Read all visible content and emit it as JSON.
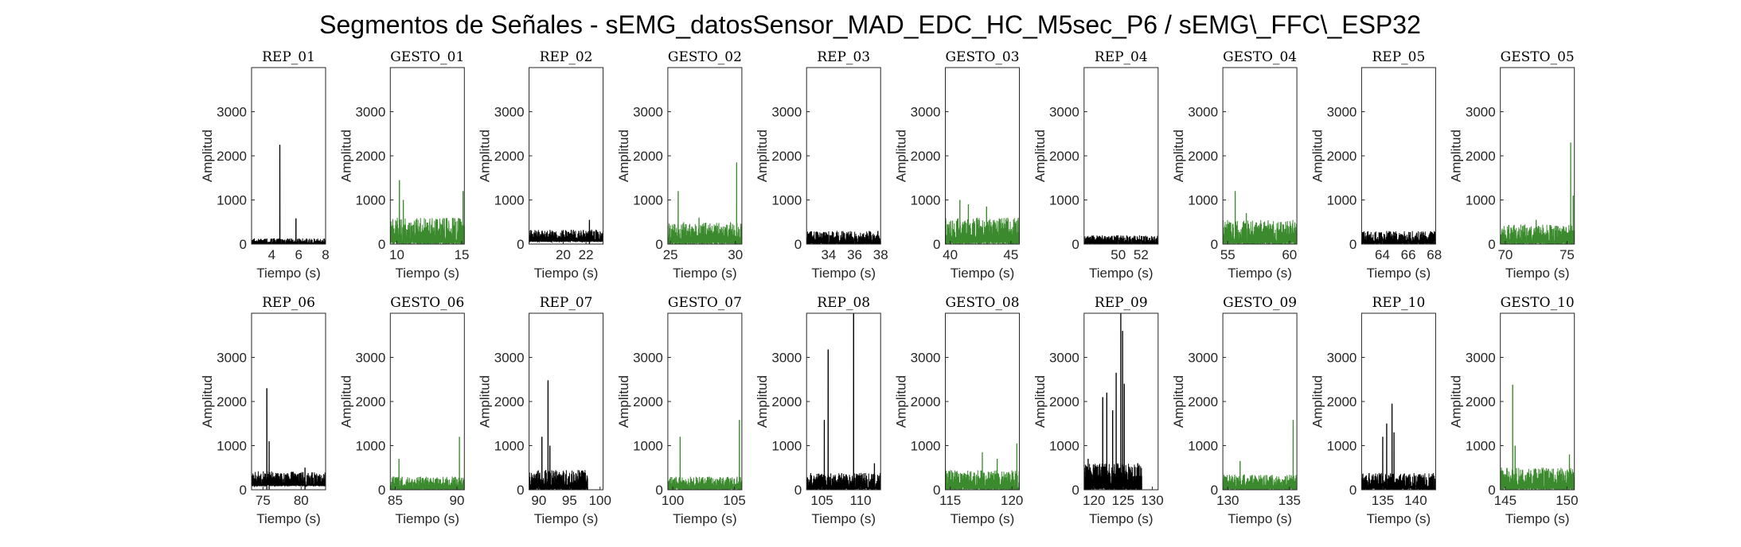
{
  "figure": {
    "title": "Segmentos de Señales - sEMG_datosSensor_MAD_EDC_HC_M5sec_P6 / sEMG\\_FFC\\_ESP32",
    "colors": {
      "rep": "#000000",
      "gesto": "#3b8a2e"
    }
  },
  "chart_data": [
    {
      "type": "line",
      "title": "REP_01",
      "kind": "rep",
      "xlabel": "Tiempo (s)",
      "ylabel": "Amplitud",
      "xlim": [
        2.5,
        8
      ],
      "xticks": [
        4,
        6,
        8
      ],
      "ylim": [
        0,
        4000
      ],
      "yticks": [
        0,
        1000,
        2000,
        3000
      ],
      "baseline": [
        0,
        130
      ],
      "peaks": [
        [
          4.6,
          2250
        ],
        [
          5.8,
          580
        ]
      ]
    },
    {
      "type": "line",
      "title": "GESTO_01",
      "kind": "gesto",
      "xlabel": "Tiempo (s)",
      "ylabel": "Amplitud",
      "xlim": [
        9.5,
        15.2
      ],
      "xticks": [
        10,
        15
      ],
      "ylim": [
        0,
        4000
      ],
      "yticks": [
        0,
        1000,
        2000,
        3000
      ],
      "baseline": [
        0,
        600
      ],
      "peaks": [
        [
          10.2,
          1450
        ],
        [
          10.5,
          1000
        ],
        [
          15.1,
          1200
        ]
      ]
    },
    {
      "type": "line",
      "title": "REP_02",
      "kind": "rep",
      "xlabel": "Tiempo (s)",
      "ylabel": "Amplitud",
      "xlim": [
        17,
        23.5
      ],
      "xticks": [
        20,
        22
      ],
      "ylim": [
        0,
        4000
      ],
      "yticks": [
        0,
        1000,
        2000,
        3000
      ],
      "baseline": [
        50,
        330
      ],
      "peaks": [
        [
          22.3,
          550
        ]
      ]
    },
    {
      "type": "line",
      "title": "GESTO_02",
      "kind": "gesto",
      "xlabel": "Tiempo (s)",
      "ylabel": "Amplitud",
      "xlim": [
        24.8,
        30.5
      ],
      "xticks": [
        25,
        30
      ],
      "ylim": [
        0,
        4000
      ],
      "yticks": [
        0,
        1000,
        2000,
        3000
      ],
      "baseline": [
        0,
        500
      ],
      "peaks": [
        [
          25.6,
          1200
        ],
        [
          27.2,
          600
        ],
        [
          30.1,
          1850
        ]
      ]
    },
    {
      "type": "line",
      "title": "REP_03",
      "kind": "rep",
      "xlabel": "Tiempo (s)",
      "ylabel": "Amplitud",
      "xlim": [
        32.3,
        38
      ],
      "xticks": [
        34,
        36,
        38
      ],
      "ylim": [
        0,
        4000
      ],
      "yticks": [
        0,
        1000,
        2000,
        3000
      ],
      "baseline": [
        0,
        300
      ],
      "peaks": []
    },
    {
      "type": "line",
      "title": "GESTO_03",
      "kind": "gesto",
      "xlabel": "Tiempo (s)",
      "ylabel": "Amplitud",
      "xlim": [
        39.6,
        45.7
      ],
      "xticks": [
        40,
        45
      ],
      "ylim": [
        0,
        4000
      ],
      "yticks": [
        0,
        1000,
        2000,
        3000
      ],
      "baseline": [
        0,
        600
      ],
      "peaks": [
        [
          40.8,
          1000
        ],
        [
          41.5,
          900
        ],
        [
          43.0,
          850
        ]
      ]
    },
    {
      "type": "line",
      "title": "REP_04",
      "kind": "rep",
      "xlabel": "Tiempo (s)",
      "ylabel": "Amplitud",
      "xlim": [
        47,
        53.5
      ],
      "xticks": [
        50,
        52
      ],
      "ylim": [
        0,
        4000
      ],
      "yticks": [
        0,
        1000,
        2000,
        3000
      ],
      "baseline": [
        0,
        200
      ],
      "peaks": []
    },
    {
      "type": "line",
      "title": "GESTO_04",
      "kind": "gesto",
      "xlabel": "Tiempo (s)",
      "ylabel": "Amplitud",
      "xlim": [
        54.6,
        60.6
      ],
      "xticks": [
        55,
        60
      ],
      "ylim": [
        0,
        4000
      ],
      "yticks": [
        0,
        1000,
        2000,
        3000
      ],
      "baseline": [
        0,
        550
      ],
      "peaks": [
        [
          55.6,
          1200
        ],
        [
          56.5,
          700
        ]
      ]
    },
    {
      "type": "line",
      "title": "REP_05",
      "kind": "rep",
      "xlabel": "Tiempo (s)",
      "ylabel": "Amplitud",
      "xlim": [
        62.4,
        68.1
      ],
      "xticks": [
        64,
        66,
        68
      ],
      "ylim": [
        0,
        4000
      ],
      "yticks": [
        0,
        1000,
        2000,
        3000
      ],
      "baseline": [
        0,
        300
      ],
      "peaks": []
    },
    {
      "type": "line",
      "title": "GESTO_05",
      "kind": "gesto",
      "xlabel": "Tiempo (s)",
      "ylabel": "Amplitud",
      "xlim": [
        69.6,
        75.6
      ],
      "xticks": [
        70,
        75
      ],
      "ylim": [
        0,
        4000
      ],
      "yticks": [
        0,
        1000,
        2000,
        3000
      ],
      "baseline": [
        0,
        450
      ],
      "peaks": [
        [
          72.5,
          550
        ],
        [
          75.3,
          2300
        ],
        [
          75.5,
          1100
        ]
      ]
    },
    {
      "type": "line",
      "title": "REP_06",
      "kind": "rep",
      "xlabel": "Tiempo (s)",
      "ylabel": "Amplitud",
      "xlim": [
        73.5,
        83.2
      ],
      "xticks": [
        75,
        80
      ],
      "ylim": [
        0,
        4000
      ],
      "yticks": [
        0,
        1000,
        2000,
        3000
      ],
      "baseline": [
        80,
        420
      ],
      "peaks": [
        [
          75.5,
          2300
        ],
        [
          75.8,
          1100
        ],
        [
          80.5,
          500
        ]
      ]
    },
    {
      "type": "line",
      "title": "GESTO_06",
      "kind": "gesto",
      "xlabel": "Tiempo (s)",
      "ylabel": "Amplitud",
      "xlim": [
        84.6,
        90.6
      ],
      "xticks": [
        85,
        90
      ],
      "ylim": [
        0,
        4000
      ],
      "yticks": [
        0,
        1000,
        2000,
        3000
      ],
      "baseline": [
        0,
        300
      ],
      "peaks": [
        [
          85.3,
          700
        ],
        [
          90.2,
          1200
        ]
      ]
    },
    {
      "type": "line",
      "title": "REP_07",
      "kind": "rep",
      "xlabel": "Tiempo (s)",
      "ylabel": "Amplitud",
      "xlim": [
        88.4,
        100.5
      ],
      "xticks": [
        90,
        95,
        100
      ],
      "ylim": [
        0,
        4000
      ],
      "yticks": [
        0,
        1000,
        2000,
        3000
      ],
      "baseline": [
        0,
        450
      ],
      "peaks": [
        [
          90.5,
          1200
        ],
        [
          91.5,
          2480
        ],
        [
          91.8,
          1000
        ]
      ]
    },
    {
      "type": "line",
      "title": "GESTO_07",
      "kind": "gesto",
      "xlabel": "Tiempo (s)",
      "ylabel": "Amplitud",
      "xlim": [
        99.6,
        105.6
      ],
      "xticks": [
        100,
        105
      ],
      "ylim": [
        0,
        4000
      ],
      "yticks": [
        0,
        1000,
        2000,
        3000
      ],
      "baseline": [
        0,
        300
      ],
      "peaks": [
        [
          100.6,
          1200
        ],
        [
          105.4,
          1580
        ]
      ]
    },
    {
      "type": "line",
      "title": "REP_08",
      "kind": "rep",
      "xlabel": "Tiempo (s)",
      "ylabel": "Amplitud",
      "xlim": [
        103,
        112.6
      ],
      "xticks": [
        105,
        110
      ],
      "ylim": [
        0,
        4000
      ],
      "yticks": [
        0,
        1000,
        2000,
        3000
      ],
      "baseline": [
        0,
        380
      ],
      "peaks": [
        [
          105.3,
          1580
        ],
        [
          105.8,
          3180
        ],
        [
          109.1,
          4000
        ],
        [
          111.8,
          600
        ]
      ]
    },
    {
      "type": "line",
      "title": "GESTO_08",
      "kind": "gesto",
      "xlabel": "Tiempo (s)",
      "ylabel": "Amplitud",
      "xlim": [
        114.6,
        120.6
      ],
      "xticks": [
        115,
        120
      ],
      "ylim": [
        0,
        4000
      ],
      "yticks": [
        0,
        1000,
        2000,
        3000
      ],
      "baseline": [
        0,
        450
      ],
      "peaks": [
        [
          117.6,
          850
        ],
        [
          118.8,
          700
        ],
        [
          120.4,
          1050
        ]
      ]
    },
    {
      "type": "line",
      "title": "REP_09",
      "kind": "rep",
      "xlabel": "Tiempo (s)",
      "ylabel": "Amplitud",
      "xlim": [
        118.3,
        131
      ],
      "xticks": [
        120,
        125,
        130
      ],
      "ylim": [
        0,
        4000
      ],
      "yticks": [
        0,
        1000,
        2000,
        3000
      ],
      "baseline": [
        0,
        600
      ],
      "peaks": [
        [
          119,
          700
        ],
        [
          121.5,
          2100
        ],
        [
          122.2,
          2200
        ],
        [
          123.2,
          1800
        ],
        [
          123.8,
          2650
        ],
        [
          124.6,
          4000
        ],
        [
          124.9,
          3600
        ],
        [
          125.2,
          2400
        ],
        [
          127.5,
          600
        ]
      ]
    },
    {
      "type": "line",
      "title": "GESTO_09",
      "kind": "gesto",
      "xlabel": "Tiempo (s)",
      "ylabel": "Amplitud",
      "xlim": [
        129.6,
        135.6
      ],
      "xticks": [
        130,
        135
      ],
      "ylim": [
        0,
        4000
      ],
      "yticks": [
        0,
        1000,
        2000,
        3000
      ],
      "baseline": [
        0,
        350
      ],
      "peaks": [
        [
          131.0,
          650
        ],
        [
          135.3,
          1580
        ]
      ]
    },
    {
      "type": "line",
      "title": "REP_10",
      "kind": "rep",
      "xlabel": "Tiempo (s)",
      "ylabel": "Amplitud",
      "xlim": [
        131.8,
        143
      ],
      "xticks": [
        135,
        140
      ],
      "ylim": [
        0,
        4000
      ],
      "yticks": [
        0,
        1000,
        2000,
        3000
      ],
      "baseline": [
        0,
        380
      ],
      "peaks": [
        [
          135.0,
          1200
        ],
        [
          135.6,
          1500
        ],
        [
          136.4,
          1950
        ],
        [
          136.7,
          1300
        ]
      ]
    },
    {
      "type": "line",
      "title": "GESTO_10",
      "kind": "gesto",
      "xlabel": "Tiempo (s)",
      "ylabel": "Amplitud",
      "xlim": [
        144.6,
        150.6
      ],
      "xticks": [
        145,
        150
      ],
      "ylim": [
        0,
        4000
      ],
      "yticks": [
        0,
        1000,
        2000,
        3000
      ],
      "baseline": [
        0,
        500
      ],
      "peaks": [
        [
          145.6,
          2380
        ],
        [
          145.8,
          1000
        ],
        [
          150.2,
          800
        ]
      ]
    }
  ]
}
